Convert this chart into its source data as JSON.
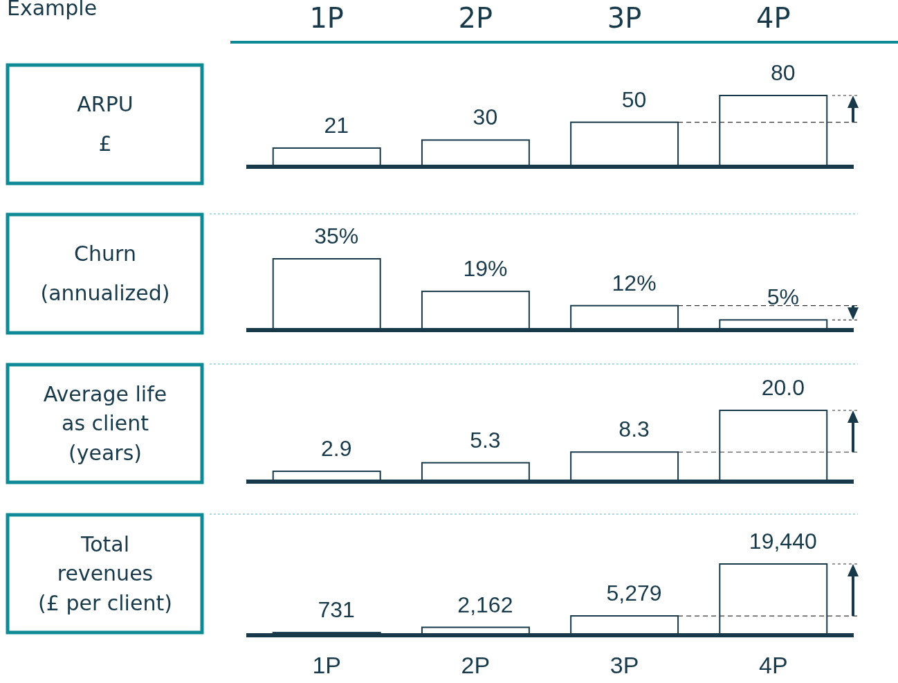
{
  "chart_data": [
    {
      "type": "bar",
      "annotations": [
        "Example"
      ],
      "ylabel": "ARPU\n£",
      "categories": [
        "1P",
        "2P",
        "3P",
        "4P"
      ],
      "values": [
        21,
        30,
        50,
        80
      ],
      "color": "#ffffff",
      "data_labels": true,
      "tick_labels": "x",
      "ref_lines": [
        {
          "axis": "y",
          "value": 50,
          "line_style": "dashed",
          "color": "#333333"
        }
      ]
    },
    {
      "type": "bar",
      "ylabel": "Churn\n(annualized)",
      "categories": [
        null,
        null,
        null,
        null
      ],
      "values": [
        35,
        19,
        12,
        5
      ],
      "value_labels": [
        "35%",
        "19%",
        "12%",
        "5%"
      ],
      "color": "#ffffff",
      "tick_labels": false,
      "ref_lines": [
        {
          "axis": "y",
          "value": 12,
          "line_style": "dashed",
          "color": "#333333"
        }
      ]
    },
    {
      "type": "bar",
      "ylabel": "Average life\nas client\n(years)",
      "categories": [
        null,
        null,
        null,
        null
      ],
      "values": [
        2.9,
        5.3,
        8.3,
        20.0
      ],
      "value_labels": [
        "2.9",
        "5.3",
        "8.3",
        "20.0"
      ],
      "color": "#ffffff",
      "tick_labels": false,
      "ref_lines": [
        {
          "axis": "y",
          "value": 8.3,
          "line_style": "dashed",
          "color": "#333333"
        }
      ]
    },
    {
      "type": "bar",
      "ylabel": "Total\nrevenues\n(£ per client)",
      "categories": [
        "1P",
        "2P",
        "3P",
        "4P"
      ],
      "values": [
        731,
        2162,
        5279,
        19440
      ],
      "value_labels": [
        "731",
        "2,162",
        "5,279",
        "19,440"
      ],
      "color": "#ffffff",
      "tick_labels": "x",
      "ref_lines": [
        {
          "axis": "y",
          "value": 5279,
          "line_style": "dashed",
          "color": "#333333"
        }
      ]
    }
  ]
}
